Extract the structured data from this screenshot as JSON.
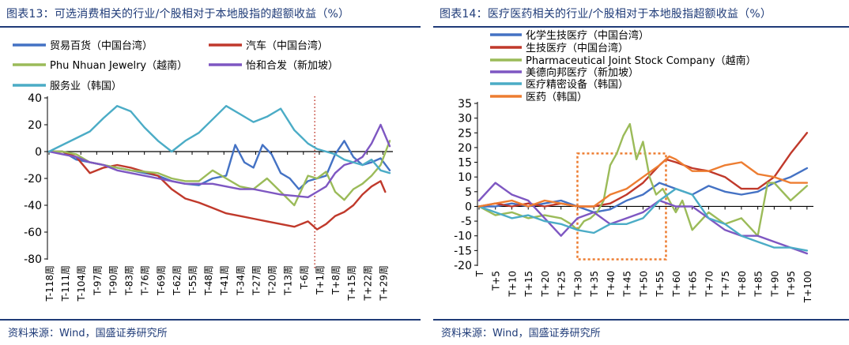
{
  "source_text": "资料来源：Wind，国盛证券研究所",
  "chart_data": [
    {
      "type": "line",
      "title": "图表13：可选消费相关的行业/个股相对于本地股指的超额收益（%）",
      "ylim": [
        -80,
        40
      ],
      "yticks": [
        40,
        20,
        0,
        -20,
        -40,
        -60,
        -80
      ],
      "x": [
        -118,
        32
      ],
      "xticks": [
        -118,
        -111,
        -104,
        -97,
        -90,
        -83,
        -76,
        -69,
        -62,
        -55,
        -48,
        -41,
        -34,
        -27,
        -20,
        -13,
        -6,
        1,
        8,
        15,
        22,
        29
      ],
      "xtick_labels": [
        "T-118周",
        "T-111周",
        "T-104周",
        "T-97周",
        "T-90周",
        "T-83周",
        "T-76周",
        "T-69周",
        "T-62周",
        "T-55周",
        "T-48周",
        "T-41周",
        "T-34周",
        "T-27周",
        "T-20周",
        "T-13周",
        "T-6周",
        "T+1周",
        "T+8周",
        "T+15周",
        "T+22周",
        "T+29周"
      ],
      "event_marker_x": -1,
      "legend_position": "top",
      "series": [
        {
          "name": "贸易百货（中国台湾）",
          "color": "#4472C4",
          "x": [
            -118,
            -112,
            -106,
            -100,
            -94,
            -88,
            -82,
            -76,
            -70,
            -64,
            -58,
            -52,
            -46,
            -40,
            -36,
            -32,
            -28,
            -24,
            -20,
            -16,
            -12,
            -8,
            -4,
            0,
            4,
            8,
            12,
            16,
            20,
            24,
            28,
            32
          ],
          "values": [
            0,
            0,
            -6,
            -8,
            -10,
            -12,
            -14,
            -16,
            -18,
            -22,
            -24,
            -25,
            -20,
            -18,
            5,
            -8,
            -12,
            5,
            -2,
            -16,
            -20,
            -28,
            -22,
            -20,
            -18,
            -2,
            8,
            -4,
            -10,
            -8,
            -5,
            -14
          ]
        },
        {
          "name": "汽车（中国台湾）",
          "color": "#C0392B",
          "x": [
            -118,
            -112,
            -106,
            -100,
            -94,
            -88,
            -82,
            -76,
            -70,
            -64,
            -58,
            -52,
            -46,
            -40,
            -34,
            -28,
            -22,
            -16,
            -10,
            -4,
            0,
            4,
            8,
            12,
            16,
            20,
            24,
            28,
            30
          ],
          "values": [
            0,
            0,
            -4,
            -16,
            -12,
            -10,
            -12,
            -15,
            -18,
            -28,
            -35,
            -38,
            -42,
            -46,
            -48,
            -50,
            -52,
            -54,
            -56,
            -52,
            -58,
            -54,
            -48,
            -45,
            -40,
            -32,
            -26,
            -22,
            -30
          ]
        },
        {
          "name": "Phu Nhuan Jewelry（越南）",
          "color": "#9BBB59",
          "x": [
            -118,
            -112,
            -106,
            -100,
            -94,
            -88,
            -82,
            -76,
            -70,
            -64,
            -58,
            -52,
            -46,
            -40,
            -34,
            -28,
            -22,
            -16,
            -10,
            -4,
            0,
            4,
            8,
            12,
            16,
            20,
            24,
            28,
            32
          ],
          "values": [
            0,
            0,
            -2,
            -8,
            -10,
            -12,
            -14,
            -15,
            -16,
            -20,
            -22,
            -22,
            -14,
            -20,
            -26,
            -28,
            -20,
            -30,
            -40,
            -18,
            -20,
            -15,
            -30,
            -36,
            -28,
            -24,
            -18,
            -10,
            8
          ]
        },
        {
          "name": "怡和合发（新加坡）",
          "color": "#7E57C2",
          "x": [
            -118,
            -112,
            -106,
            -100,
            -94,
            -88,
            -82,
            -76,
            -70,
            -64,
            -58,
            -52,
            -46,
            -40,
            -34,
            -28,
            -22,
            -16,
            -10,
            -4,
            0,
            4,
            8,
            12,
            16,
            20,
            24,
            28,
            32
          ],
          "values": [
            0,
            -2,
            -4,
            -8,
            -10,
            -14,
            -16,
            -18,
            -20,
            -22,
            -24,
            -24,
            -24,
            -26,
            -28,
            -28,
            -30,
            -32,
            -33,
            -34,
            -30,
            -26,
            -16,
            -10,
            -8,
            -4,
            6,
            20,
            4
          ]
        },
        {
          "name": "服务业（韩国）",
          "color": "#4BACC6",
          "x": [
            -118,
            -112,
            -106,
            -100,
            -94,
            -88,
            -82,
            -76,
            -70,
            -64,
            -58,
            -52,
            -46,
            -40,
            -34,
            -28,
            -22,
            -16,
            -10,
            -4,
            0,
            4,
            8,
            12,
            16,
            20,
            24,
            28,
            32
          ],
          "values": [
            0,
            5,
            10,
            15,
            25,
            34,
            30,
            18,
            8,
            0,
            8,
            14,
            24,
            34,
            28,
            22,
            26,
            32,
            16,
            6,
            2,
            0,
            -2,
            -6,
            -8,
            -10,
            -6,
            -14,
            -16
          ]
        }
      ]
    },
    {
      "type": "line",
      "title": "图表14：医疗医药相关的行业/个股相对于本地股指超额收益（%）",
      "ylim": [
        -20,
        35
      ],
      "yticks": [
        35,
        30,
        25,
        20,
        15,
        10,
        5,
        0,
        -5,
        -10,
        -15,
        -20
      ],
      "x": [
        0,
        101
      ],
      "xticks": [
        0,
        5,
        10,
        15,
        20,
        25,
        30,
        35,
        40,
        45,
        50,
        55,
        60,
        65,
        70,
        75,
        80,
        85,
        90,
        95,
        100
      ],
      "xtick_labels": [
        "T",
        "T+5",
        "T+10",
        "T+15",
        "T+20",
        "T+25",
        "T+30",
        "T+35",
        "T+40",
        "T+45",
        "T+50",
        "T+55",
        "T+60",
        "T+65",
        "T+70",
        "T+75",
        "T+80",
        "T+85",
        "T+90",
        "T+95",
        "T+100"
      ],
      "highlight_range": {
        "x": [
          30,
          57
        ],
        "y": [
          -18,
          18
        ]
      },
      "legend_position": "top-left",
      "series": [
        {
          "name": "化学生技医疗（中国台湾）",
          "color": "#4472C4",
          "x": [
            0,
            5,
            10,
            15,
            20,
            25,
            30,
            35,
            40,
            45,
            50,
            55,
            60,
            65,
            70,
            75,
            80,
            85,
            90,
            95,
            100
          ],
          "values": [
            0,
            0,
            1,
            0,
            1,
            2,
            0,
            -2,
            -1,
            2,
            4,
            8,
            6,
            4,
            7,
            5,
            4,
            5,
            8,
            10,
            13
          ]
        },
        {
          "name": "生技医疗（中国台湾）",
          "color": "#C0392B",
          "x": [
            0,
            5,
            10,
            15,
            20,
            25,
            30,
            35,
            40,
            45,
            50,
            55,
            57,
            60,
            65,
            70,
            75,
            80,
            85,
            90,
            95,
            100
          ],
          "values": [
            0,
            1,
            0,
            1,
            0,
            1,
            0,
            0,
            1,
            4,
            8,
            14,
            16,
            15,
            13,
            12,
            10,
            6,
            6,
            10,
            18,
            25
          ]
        },
        {
          "name": "Pharmaceutical Joint Stock Company（越南）",
          "color": "#9BBB59",
          "x": [
            0,
            5,
            10,
            15,
            20,
            25,
            28,
            30,
            32,
            34,
            36,
            38,
            40,
            42,
            44,
            46,
            48,
            50,
            52,
            54,
            56,
            58,
            60,
            62,
            65,
            70,
            75,
            80,
            85,
            88,
            90,
            95,
            100
          ],
          "values": [
            0,
            -3,
            -2,
            -4,
            -3,
            -4,
            -6,
            -8,
            -5,
            -4,
            -2,
            2,
            14,
            18,
            24,
            28,
            16,
            22,
            10,
            4,
            6,
            2,
            -2,
            2,
            -8,
            -2,
            -6,
            -4,
            -10,
            8,
            8,
            2,
            7
          ]
        },
        {
          "name": "美德向邦医疗（新加坡）",
          "color": "#7E57C2",
          "x": [
            0,
            5,
            10,
            15,
            20,
            25,
            30,
            35,
            40,
            45,
            50,
            55,
            60,
            65,
            70,
            75,
            80,
            85,
            90,
            95,
            100
          ],
          "values": [
            2,
            8,
            4,
            2,
            -4,
            -10,
            -4,
            -2,
            -6,
            -4,
            -2,
            2,
            0,
            0,
            -4,
            -8,
            -10,
            -10,
            -12,
            -14,
            -16
          ]
        },
        {
          "name": "医疗精密设备（韩国）",
          "color": "#4BACC6",
          "x": [
            0,
            5,
            10,
            15,
            20,
            25,
            30,
            35,
            40,
            45,
            50,
            55,
            60,
            65,
            70,
            75,
            80,
            85,
            90,
            95,
            100
          ],
          "values": [
            0,
            -2,
            -4,
            -3,
            -5,
            -6,
            -8,
            -9,
            -6,
            -6,
            -4,
            2,
            6,
            4,
            -4,
            -6,
            -10,
            -12,
            -14,
            -14,
            -15
          ]
        },
        {
          "name": "医药（韩国）",
          "color": "#ED7D31",
          "x": [
            0,
            5,
            10,
            15,
            20,
            25,
            30,
            35,
            40,
            45,
            50,
            55,
            58,
            60,
            65,
            70,
            75,
            80,
            85,
            90,
            95,
            100
          ],
          "values": [
            0,
            1,
            2,
            0,
            2,
            1,
            0,
            0,
            4,
            6,
            10,
            14,
            17,
            16,
            12,
            12,
            14,
            15,
            11,
            10,
            8,
            8
          ]
        }
      ]
    }
  ]
}
